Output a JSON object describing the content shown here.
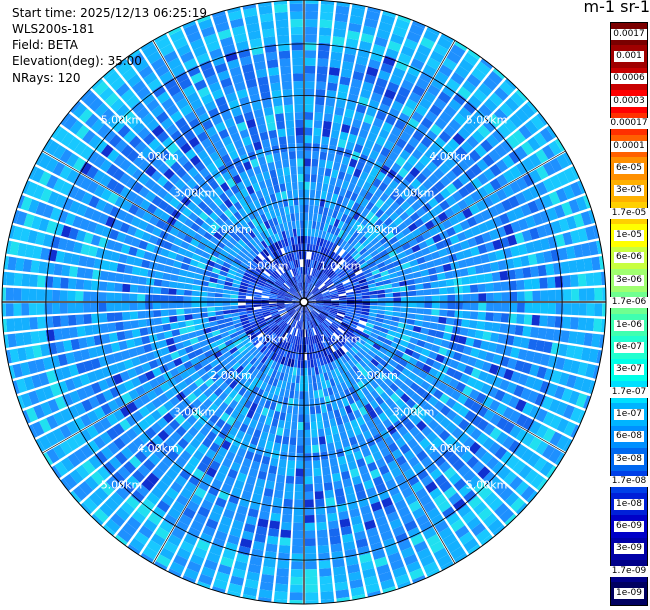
{
  "info": {
    "start_time": "Start time: 2025/12/13 06:25:19",
    "instrument": "WLS200s-181",
    "field": "Field: BETA",
    "elevation": "Elevation(deg): 35.00",
    "nrays": "NRays: 120"
  },
  "colorbar": {
    "title": "m-1 sr-1",
    "labels": [
      "0.0017",
      "0.001",
      "0.0006",
      "0.0003",
      "0.00017",
      "0.0001",
      "6e-05",
      "3e-05",
      "1.7e-05",
      "1e-05",
      "6e-06",
      "3e-06",
      "1.7e-06",
      "1e-06",
      "6e-07",
      "3e-07",
      "1.7e-07",
      "1e-07",
      "6e-08",
      "3e-08",
      "1.7e-08",
      "1e-08",
      "6e-09",
      "3e-09",
      "1.7e-09",
      "1e-09"
    ],
    "colors": [
      "#7a0000",
      "#a00000",
      "#c80000",
      "#ff0000",
      "#ff3000",
      "#ff6000",
      "#ff9000",
      "#ffb000",
      "#ffd000",
      "#ffff00",
      "#c8ff40",
      "#a0ff70",
      "#70ff90",
      "#40ffb0",
      "#20ffd0",
      "#00ffe8",
      "#00e0ff",
      "#00b4ff",
      "#0090ff",
      "#0068f0",
      "#0040e8",
      "#0020d8",
      "#0000c8",
      "#0000a8",
      "#000088",
      "#000060"
    ]
  },
  "chart_data": {
    "type": "heatmap",
    "projection": "polar (PPI scan)",
    "field": "BETA",
    "elevation_deg": 35.0,
    "nrays": 120,
    "range_rings_km": [
      1.0,
      2.0,
      3.0,
      4.0,
      5.0
    ],
    "ring_labels": [
      "1.00km",
      "2.00km",
      "3.00km",
      "4.00km",
      "5.00km"
    ],
    "max_range_km": 5.85,
    "dominant_value_range": [
      1e-08,
      1.7e-07
    ],
    "grid": true
  }
}
